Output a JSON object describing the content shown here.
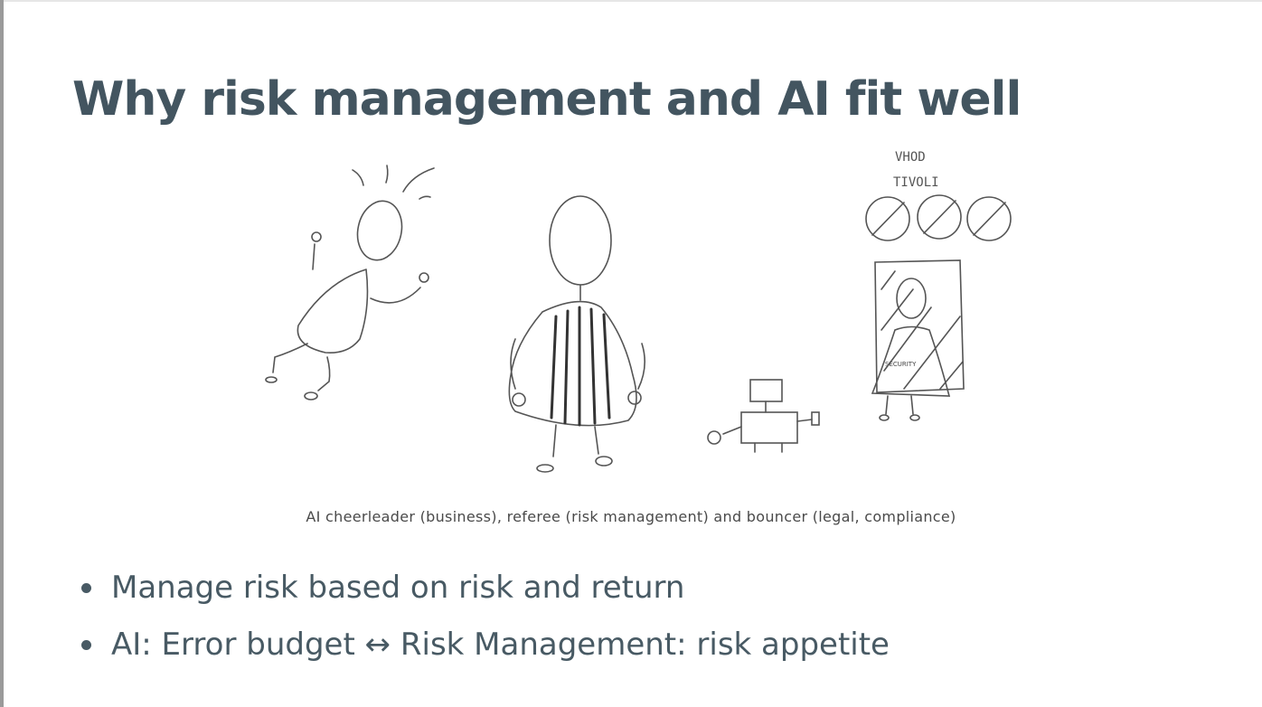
{
  "slide": {
    "title": "Why risk management and AI fit well",
    "caption": "AI cheerleader (business), referee (risk management) and bouncer (legal, compliance)",
    "bullets": [
      {
        "text": "Manage risk based on risk and return"
      },
      {
        "text": "AI: Error budget ↔ Risk Management: risk appetite"
      }
    ]
  },
  "illustration": {
    "sign_line_1": "VHOD",
    "sign_line_2": "TIVOLI",
    "shirt_label": "SECURITY"
  }
}
